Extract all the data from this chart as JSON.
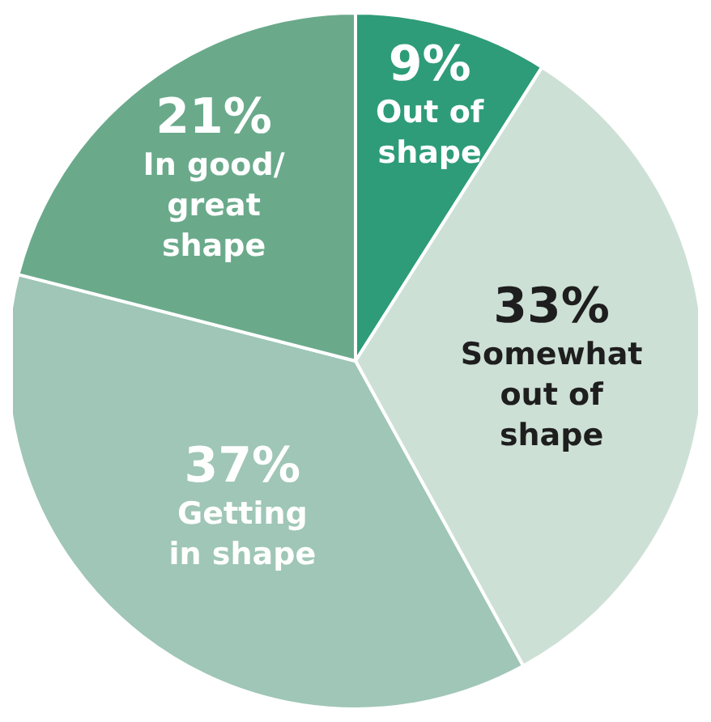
{
  "chart_data": {
    "type": "pie",
    "categories": [
      "Out of\nshape",
      "Somewhat\nout of\nshape",
      "Getting\nin shape",
      "In good/\ngreat\nshape"
    ],
    "values": [
      9,
      33,
      37,
      21
    ],
    "value_labels": [
      "9%",
      "33%",
      "37%",
      "21%"
    ],
    "colors": [
      "#2e9c78",
      "#cde0d6",
      "#9fc6b7",
      "#6aaa8b"
    ],
    "legend": false
  }
}
